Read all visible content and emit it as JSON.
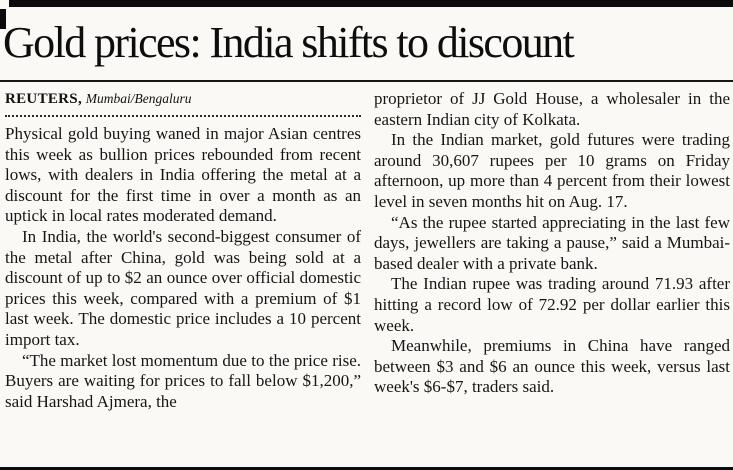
{
  "article": {
    "title": "Gold prices: India shifts to discount",
    "byline": {
      "agency": "REUTERS,",
      "location": "Mumbai/Bengaluru"
    },
    "columns": [
      {
        "paragraphs": [
          "Physical gold buying waned in major Asian centres this week as bullion prices rebounded from recent lows, with dealers in India offering the metal at a discount for the first time in over a month as an uptick in local rates moderated demand.",
          "In India, the world's second-biggest consumer of the metal after China, gold was being sold at a discount of up to $2 an ounce over official domestic prices this week, compared with a premium of $1 last week. The domestic price includes a 10 percent import tax.",
          "“The market lost momentum due to the price rise. Buyers are waiting for prices to fall below $1,200,” said Harshad Ajmera, the"
        ]
      },
      {
        "paragraphs": [
          "proprietor of JJ Gold House, a wholesaler in the eastern Indian city of Kolkata.",
          "In the Indian market, gold futures were trading around 30,607 rupees per 10 grams on Friday afternoon, up more than 4 percent from their lowest level in seven months hit on Aug. 17.",
          "“As the rupee started appreciating in the last few days, jewellers are taking a pause,” said a Mumbai-based dealer with a private bank.",
          "The Indian rupee was trading around 71.93 after hitting a record low of 72.92 per dollar earlier this week.",
          "Meanwhile, premiums in China have ranged between $3 and $6 an ounce this week, versus last week's $6-$7, traders said."
        ]
      }
    ]
  }
}
